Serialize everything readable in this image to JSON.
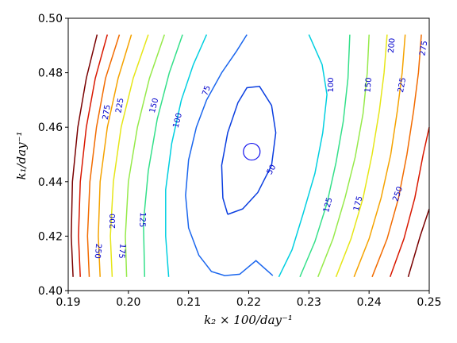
{
  "chart_data": {
    "type": "contour",
    "xlabel": "k₂ × 100/day⁻¹",
    "ylabel": "k₁/day⁻¹",
    "xlim": [
      0.19,
      0.25
    ],
    "ylim": [
      0.4,
      0.5
    ],
    "xticks": [
      "0.19",
      "0.20",
      "0.21",
      "0.22",
      "0.23",
      "0.24",
      "0.25"
    ],
    "yticks": [
      "0.40",
      "0.42",
      "0.44",
      "0.46",
      "0.48",
      "0.50"
    ],
    "minimum": {
      "x": 0.2205,
      "y": 0.451
    },
    "contours": [
      {
        "level": 50,
        "color": "#0a3ee0",
        "points": [
          [
            0.2165,
            0.428
          ],
          [
            0.219,
            0.43
          ],
          [
            0.2215,
            0.436
          ],
          [
            0.2238,
            0.446
          ],
          [
            0.2245,
            0.458
          ],
          [
            0.2238,
            0.468
          ],
          [
            0.2218,
            0.475
          ],
          [
            0.2197,
            0.4745
          ],
          [
            0.2182,
            0.469
          ],
          [
            0.2165,
            0.458
          ],
          [
            0.2155,
            0.446
          ],
          [
            0.2157,
            0.434
          ],
          [
            0.2165,
            0.428
          ]
        ]
      },
      {
        "level": 75,
        "color": "#1a66ee",
        "points": [
          [
            0.224,
            0.4055
          ],
          [
            0.2212,
            0.411
          ],
          [
            0.2185,
            0.406
          ],
          [
            0.216,
            0.4055
          ],
          [
            0.2138,
            0.407
          ],
          [
            0.2117,
            0.413
          ],
          [
            0.21,
            0.423
          ],
          [
            0.2095,
            0.435
          ],
          [
            0.21,
            0.448
          ],
          [
            0.2113,
            0.46
          ],
          [
            0.213,
            0.47
          ],
          [
            0.2155,
            0.48
          ],
          [
            0.218,
            0.488
          ],
          [
            0.2197,
            0.494
          ]
        ]
      },
      {
        "level": 100,
        "color": "#00cfe0",
        "points": [
          [
            0.213,
            0.494
          ],
          [
            0.2108,
            0.483
          ],
          [
            0.2088,
            0.47
          ],
          [
            0.2072,
            0.454
          ],
          [
            0.2062,
            0.437
          ],
          [
            0.2062,
            0.42
          ],
          [
            0.2067,
            0.405
          ]
        ]
      },
      {
        "level": 100,
        "color": "#00cfe0",
        "points": [
          [
            0.225,
            0.405
          ],
          [
            0.2272,
            0.415
          ],
          [
            0.229,
            0.428
          ],
          [
            0.231,
            0.443
          ],
          [
            0.2323,
            0.458
          ],
          [
            0.233,
            0.472
          ],
          [
            0.2322,
            0.483
          ],
          [
            0.23,
            0.494
          ]
        ]
      },
      {
        "level": 125,
        "color": "#34e08a",
        "points": [
          [
            0.209,
            0.494
          ],
          [
            0.2068,
            0.48
          ],
          [
            0.2048,
            0.463
          ],
          [
            0.2033,
            0.444
          ],
          [
            0.2025,
            0.425
          ],
          [
            0.2027,
            0.405
          ]
        ]
      },
      {
        "level": 125,
        "color": "#34e08a",
        "points": [
          [
            0.2285,
            0.405
          ],
          [
            0.231,
            0.418
          ],
          [
            0.233,
            0.432
          ],
          [
            0.2345,
            0.447
          ],
          [
            0.2357,
            0.462
          ],
          [
            0.2365,
            0.478
          ],
          [
            0.2368,
            0.494
          ]
        ]
      },
      {
        "level": 150,
        "color": "#96ea4a",
        "points": [
          [
            0.206,
            0.494
          ],
          [
            0.2035,
            0.478
          ],
          [
            0.2015,
            0.46
          ],
          [
            0.2,
            0.44
          ],
          [
            0.1995,
            0.42
          ],
          [
            0.1997,
            0.405
          ]
        ]
      },
      {
        "level": 150,
        "color": "#96ea4a",
        "points": [
          [
            0.2315,
            0.405
          ],
          [
            0.234,
            0.419
          ],
          [
            0.236,
            0.434
          ],
          [
            0.2377,
            0.449
          ],
          [
            0.239,
            0.465
          ],
          [
            0.2397,
            0.48
          ],
          [
            0.24,
            0.494
          ]
        ]
      },
      {
        "level": 175,
        "color": "#e6e617",
        "points": [
          [
            0.2033,
            0.494
          ],
          [
            0.2008,
            0.478
          ],
          [
            0.1988,
            0.46
          ],
          [
            0.1975,
            0.44
          ],
          [
            0.197,
            0.42
          ],
          [
            0.1973,
            0.405
          ]
        ]
      },
      {
        "level": 175,
        "color": "#e6e617",
        "points": [
          [
            0.2345,
            0.405
          ],
          [
            0.237,
            0.419
          ],
          [
            0.239,
            0.434
          ],
          [
            0.2405,
            0.45
          ],
          [
            0.2417,
            0.466
          ],
          [
            0.2425,
            0.48
          ],
          [
            0.243,
            0.494
          ]
        ]
      },
      {
        "level": 200,
        "color": "#f5a300",
        "points": [
          [
            0.2005,
            0.494
          ],
          [
            0.1983,
            0.478
          ],
          [
            0.1965,
            0.46
          ],
          [
            0.1953,
            0.44
          ],
          [
            0.195,
            0.42
          ],
          [
            0.1953,
            0.405
          ]
        ]
      },
      {
        "level": 200,
        "color": "#f5a300",
        "points": [
          [
            0.2375,
            0.405
          ],
          [
            0.24,
            0.419
          ],
          [
            0.242,
            0.434
          ],
          [
            0.2436,
            0.45
          ],
          [
            0.2447,
            0.466
          ],
          [
            0.2455,
            0.48
          ],
          [
            0.246,
            0.494
          ]
        ]
      },
      {
        "level": 225,
        "color": "#f26b00",
        "points": [
          [
            0.1985,
            0.494
          ],
          [
            0.1962,
            0.478
          ],
          [
            0.1947,
            0.46
          ],
          [
            0.1936,
            0.44
          ],
          [
            0.1932,
            0.42
          ],
          [
            0.1935,
            0.405
          ]
        ]
      },
      {
        "level": 225,
        "color": "#f26b00",
        "points": [
          [
            0.2405,
            0.405
          ],
          [
            0.243,
            0.419
          ],
          [
            0.2449,
            0.434
          ],
          [
            0.2463,
            0.45
          ],
          [
            0.2474,
            0.466
          ],
          [
            0.2482,
            0.48
          ],
          [
            0.2487,
            0.494
          ]
        ]
      },
      {
        "level": 250,
        "color": "#d91800",
        "points": [
          [
            0.1965,
            0.494
          ],
          [
            0.1945,
            0.478
          ],
          [
            0.193,
            0.46
          ],
          [
            0.192,
            0.44
          ],
          [
            0.1917,
            0.42
          ],
          [
            0.192,
            0.405
          ]
        ]
      },
      {
        "level": 250,
        "color": "#d91800",
        "points": [
          [
            0.2435,
            0.405
          ],
          [
            0.2458,
            0.419
          ],
          [
            0.2476,
            0.434
          ],
          [
            0.249,
            0.45
          ],
          [
            0.25,
            0.46
          ]
        ]
      },
      {
        "level": 275,
        "color": "#7a0000",
        "points": [
          [
            0.1948,
            0.494
          ],
          [
            0.193,
            0.478
          ],
          [
            0.1916,
            0.46
          ],
          [
            0.1907,
            0.44
          ],
          [
            0.1905,
            0.42
          ],
          [
            0.1908,
            0.405
          ]
        ]
      },
      {
        "level": 275,
        "color": "#7a0000",
        "points": [
          [
            0.2465,
            0.405
          ],
          [
            0.2485,
            0.42
          ],
          [
            0.25,
            0.43
          ]
        ]
      }
    ],
    "labels": [
      {
        "text": "50",
        "x": 0.2237,
        "y": 0.4445,
        "angle": -60
      },
      {
        "text": "75",
        "x": 0.2129,
        "y": 0.4735,
        "angle": -70
      },
      {
        "text": "100",
        "x": 0.2081,
        "y": 0.4625,
        "angle": -75
      },
      {
        "text": "100",
        "x": 0.2336,
        "y": 0.4755,
        "angle": -90
      },
      {
        "text": "125",
        "x": 0.2024,
        "y": 0.426,
        "angle": 92
      },
      {
        "text": "125",
        "x": 0.2331,
        "y": 0.4315,
        "angle": -75
      },
      {
        "text": "150",
        "x": 0.2042,
        "y": 0.468,
        "angle": -75
      },
      {
        "text": "150",
        "x": 0.2398,
        "y": 0.4755,
        "angle": -85
      },
      {
        "text": "175",
        "x": 0.199,
        "y": 0.4145,
        "angle": 95
      },
      {
        "text": "175",
        "x": 0.2381,
        "y": 0.432,
        "angle": -75
      },
      {
        "text": "200",
        "x": 0.1973,
        "y": 0.4255,
        "angle": -90
      },
      {
        "text": "200",
        "x": 0.2437,
        "y": 0.49,
        "angle": -85
      },
      {
        "text": "225",
        "x": 0.1985,
        "y": 0.468,
        "angle": -80
      },
      {
        "text": "225",
        "x": 0.2454,
        "y": 0.4755,
        "angle": -80
      },
      {
        "text": "250",
        "x": 0.195,
        "y": 0.4145,
        "angle": 95
      },
      {
        "text": "250",
        "x": 0.2447,
        "y": 0.4355,
        "angle": -70
      },
      {
        "text": "275",
        "x": 0.1963,
        "y": 0.4655,
        "angle": -80
      },
      {
        "text": "275",
        "x": 0.249,
        "y": 0.489,
        "angle": -80
      }
    ]
  }
}
